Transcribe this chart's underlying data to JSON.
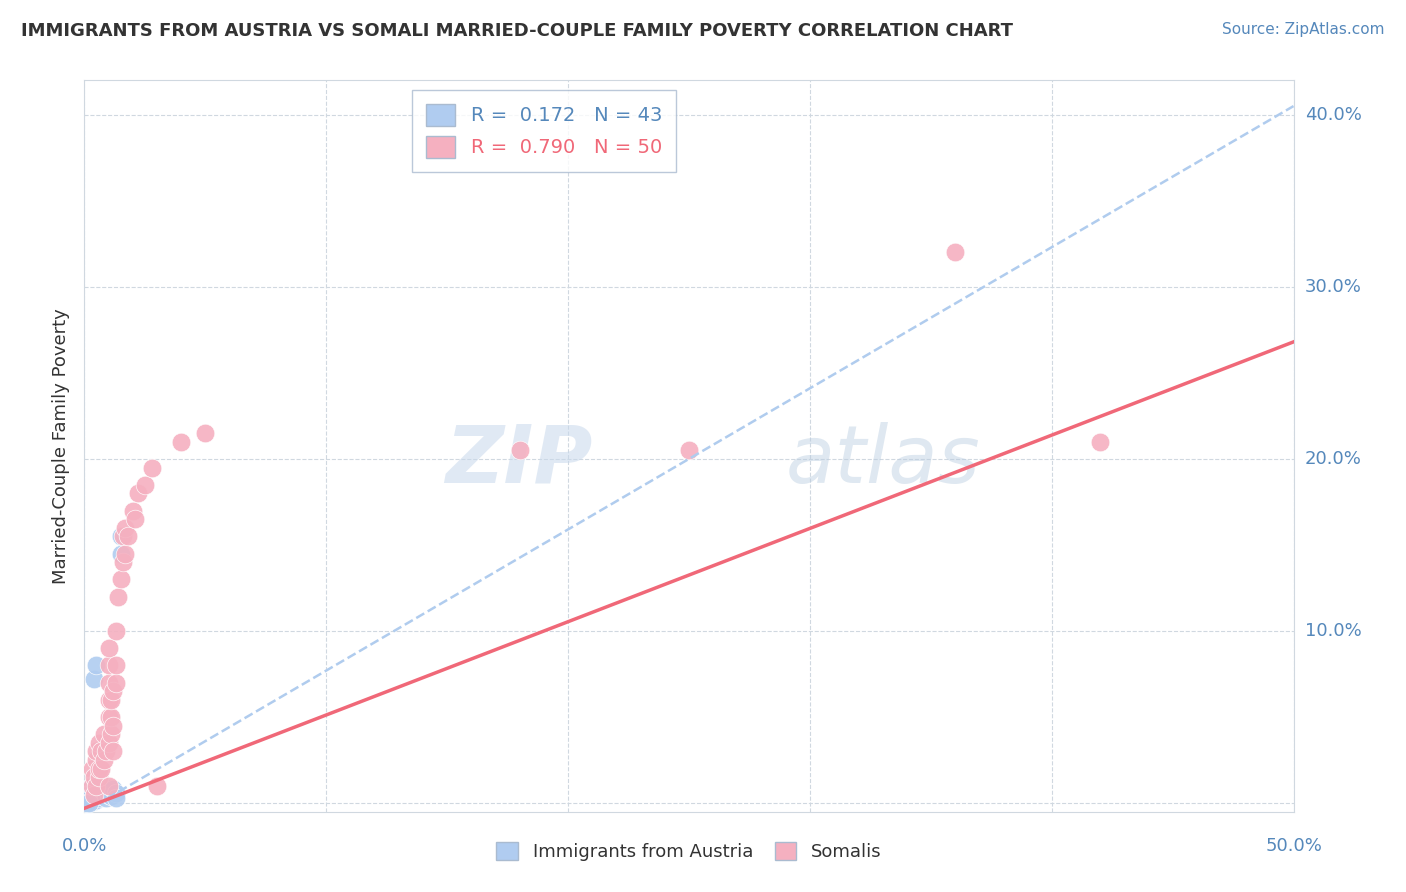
{
  "title": "IMMIGRANTS FROM AUSTRIA VS SOMALI MARRIED-COUPLE FAMILY POVERTY CORRELATION CHART",
  "source": "Source: ZipAtlas.com",
  "ylabel": "Married-Couple Family Poverty",
  "xlim": [
    0.0,
    0.5
  ],
  "ylim": [
    -0.005,
    0.42
  ],
  "yticks": [
    0.0,
    0.1,
    0.2,
    0.3,
    0.4
  ],
  "xticks": [
    0.0,
    0.1,
    0.2,
    0.3,
    0.4,
    0.5
  ],
  "R_austria": 0.172,
  "N_austria": 43,
  "R_somali": 0.79,
  "N_somali": 50,
  "austria_color": "#b0ccf0",
  "somali_color": "#f5b0c0",
  "austria_line_color": "#b0ccee",
  "somali_line_color": "#f06878",
  "watermark_color": "#d4e4f0",
  "background_color": "#ffffff",
  "grid_color": "#d0d8e0",
  "title_color": "#333333",
  "axis_label_color": "#5588bb",
  "legend_border_color": "#aabbd0",
  "austria_line": [
    [
      0.0,
      -0.005
    ],
    [
      0.5,
      0.405
    ]
  ],
  "somali_line": [
    [
      0.0,
      -0.003
    ],
    [
      0.5,
      0.268
    ]
  ],
  "austria_scatter": [
    [
      0.001,
      0.005
    ],
    [
      0.001,
      0.008
    ],
    [
      0.001,
      0.003
    ],
    [
      0.001,
      0.001
    ],
    [
      0.002,
      0.006
    ],
    [
      0.002,
      0.002
    ],
    [
      0.002,
      0.001
    ],
    [
      0.002,
      0.008
    ],
    [
      0.003,
      0.004
    ],
    [
      0.003,
      0.003
    ],
    [
      0.003,
      0.007
    ],
    [
      0.003,
      0.002
    ],
    [
      0.004,
      0.005
    ],
    [
      0.004,
      0.003
    ],
    [
      0.004,
      0.001
    ],
    [
      0.004,
      0.009
    ],
    [
      0.005,
      0.006
    ],
    [
      0.005,
      0.004
    ],
    [
      0.005,
      0.009
    ],
    [
      0.005,
      0.002
    ],
    [
      0.006,
      0.005
    ],
    [
      0.006,
      0.003
    ],
    [
      0.006,
      0.008
    ],
    [
      0.007,
      0.006
    ],
    [
      0.007,
      0.004
    ],
    [
      0.008,
      0.007
    ],
    [
      0.008,
      0.005
    ],
    [
      0.009,
      0.008
    ],
    [
      0.009,
      0.003
    ],
    [
      0.01,
      0.009
    ],
    [
      0.01,
      0.005
    ],
    [
      0.011,
      0.007
    ],
    [
      0.011,
      0.004
    ],
    [
      0.012,
      0.008
    ],
    [
      0.013,
      0.006
    ],
    [
      0.013,
      0.003
    ],
    [
      0.015,
      0.155
    ],
    [
      0.015,
      0.145
    ],
    [
      0.004,
      0.072
    ],
    [
      0.005,
      0.08
    ],
    [
      0.0,
      0.001
    ],
    [
      0.001,
      0.0
    ],
    [
      0.002,
      0.0
    ]
  ],
  "somali_scatter": [
    [
      0.003,
      0.01
    ],
    [
      0.003,
      0.02
    ],
    [
      0.004,
      0.005
    ],
    [
      0.004,
      0.015
    ],
    [
      0.005,
      0.01
    ],
    [
      0.005,
      0.025
    ],
    [
      0.005,
      0.03
    ],
    [
      0.006,
      0.015
    ],
    [
      0.006,
      0.02
    ],
    [
      0.006,
      0.035
    ],
    [
      0.007,
      0.02
    ],
    [
      0.007,
      0.03
    ],
    [
      0.008,
      0.025
    ],
    [
      0.008,
      0.04
    ],
    [
      0.009,
      0.03
    ],
    [
      0.01,
      0.01
    ],
    [
      0.01,
      0.035
    ],
    [
      0.01,
      0.05
    ],
    [
      0.01,
      0.06
    ],
    [
      0.01,
      0.07
    ],
    [
      0.01,
      0.08
    ],
    [
      0.01,
      0.09
    ],
    [
      0.011,
      0.04
    ],
    [
      0.011,
      0.05
    ],
    [
      0.011,
      0.06
    ],
    [
      0.012,
      0.03
    ],
    [
      0.012,
      0.045
    ],
    [
      0.012,
      0.065
    ],
    [
      0.013,
      0.07
    ],
    [
      0.013,
      0.08
    ],
    [
      0.013,
      0.1
    ],
    [
      0.014,
      0.12
    ],
    [
      0.015,
      0.13
    ],
    [
      0.016,
      0.14
    ],
    [
      0.016,
      0.155
    ],
    [
      0.017,
      0.145
    ],
    [
      0.017,
      0.16
    ],
    [
      0.018,
      0.155
    ],
    [
      0.02,
      0.17
    ],
    [
      0.021,
      0.165
    ],
    [
      0.022,
      0.18
    ],
    [
      0.025,
      0.185
    ],
    [
      0.028,
      0.195
    ],
    [
      0.03,
      0.01
    ],
    [
      0.04,
      0.21
    ],
    [
      0.05,
      0.215
    ],
    [
      0.18,
      0.205
    ],
    [
      0.25,
      0.205
    ],
    [
      0.36,
      0.32
    ],
    [
      0.42,
      0.21
    ]
  ]
}
